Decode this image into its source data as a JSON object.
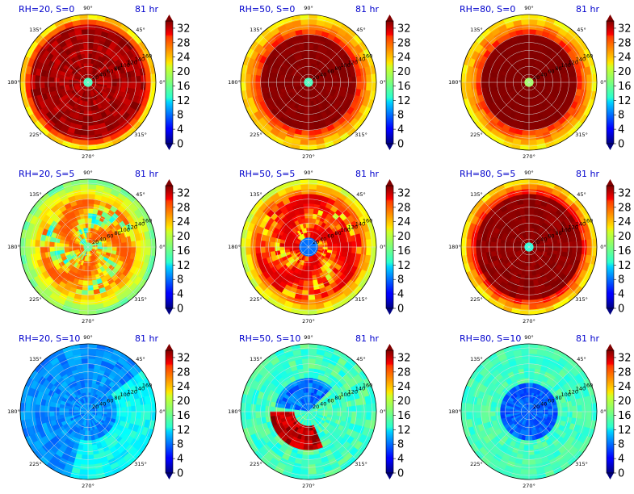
{
  "figure": {
    "angle_labels": [
      "0°",
      "45°",
      "90°",
      "135°",
      "180°",
      "225°",
      "270°",
      "315°"
    ],
    "radial_labels": [
      "20",
      "40",
      "60",
      "80",
      "100",
      "120",
      "140",
      "160"
    ],
    "colorbar_ticks": [
      "0",
      "4",
      "8",
      "12",
      "16",
      "20",
      "24",
      "28",
      "32"
    ]
  },
  "chart_data": [
    {
      "type": "heatmap",
      "projection": "polar",
      "title": "RH=20, S=0",
      "time_label": "81 hr",
      "rlim": [
        0,
        170
      ],
      "clim": [
        0,
        34
      ],
      "pattern": "ring",
      "core": [
        15,
        0.1
      ],
      "ring_value": 34,
      "ring_outer": 0.88,
      "outer_value": 20,
      "noise": 7,
      "grid": true
    },
    {
      "type": "heatmap",
      "projection": "polar",
      "title": "RH=50, S=0",
      "time_label": "81 hr",
      "rlim": [
        0,
        170
      ],
      "clim": [
        0,
        34
      ],
      "pattern": "ring",
      "core": [
        15,
        0.08
      ],
      "ring_value": 34,
      "ring_outer": 0.72,
      "outer_value": 21,
      "noise": 2,
      "grid": true
    },
    {
      "type": "heatmap",
      "projection": "polar",
      "title": "RH=80, S=0",
      "time_label": "81 hr",
      "rlim": [
        0,
        170
      ],
      "clim": [
        0,
        34
      ],
      "pattern": "ring",
      "core": [
        18,
        0.05
      ],
      "ring_value": 34,
      "ring_outer": 0.72,
      "outer_value": 21,
      "noise": 1,
      "grid": true
    },
    {
      "type": "heatmap",
      "projection": "polar",
      "title": "RH=20, S=5",
      "time_label": "81 hr",
      "rlim": [
        0,
        170
      ],
      "clim": [
        0,
        34
      ],
      "pattern": "spiral",
      "core": [
        16,
        0.06
      ],
      "ring_value": 27,
      "ring_outer": 0.75,
      "outer_value": 16,
      "noise": 8,
      "grid": true
    },
    {
      "type": "heatmap",
      "projection": "polar",
      "title": "RH=50, S=5",
      "time_label": "81 hr",
      "rlim": [
        0,
        170
      ],
      "clim": [
        0,
        34
      ],
      "pattern": "spiral",
      "core": [
        8,
        0.13
      ],
      "ring_value": 31,
      "ring_outer": 0.8,
      "outer_value": 19,
      "noise": 6,
      "grid": true
    },
    {
      "type": "heatmap",
      "projection": "polar",
      "title": "RH=80, S=5",
      "time_label": "81 hr",
      "rlim": [
        0,
        170
      ],
      "clim": [
        0,
        34
      ],
      "pattern": "ring",
      "core": [
        14,
        0.06
      ],
      "ring_value": 34,
      "ring_outer": 0.82,
      "outer_value": 21,
      "noise": 3,
      "grid": true
    },
    {
      "type": "heatmap",
      "projection": "polar",
      "title": "RH=20, S=10",
      "time_label": "81 hr",
      "rlim": [
        0,
        170
      ],
      "clim": [
        0,
        34
      ],
      "pattern": "flat",
      "core": [
        10,
        0
      ],
      "ring_value": 9,
      "ring_outer": 0.6,
      "outer_value": 10,
      "noise": 3,
      "grid": true
    },
    {
      "type": "heatmap",
      "projection": "polar",
      "title": "RH=50, S=10",
      "time_label": "81 hr",
      "rlim": [
        0,
        170
      ],
      "clim": [
        0,
        34
      ],
      "pattern": "arc",
      "core": [
        13,
        0
      ],
      "ring_value": 14,
      "ring_outer": 0.6,
      "outer_value": 15,
      "noise": 4,
      "grid": true
    },
    {
      "type": "heatmap",
      "projection": "polar",
      "title": "RH=80, S=10",
      "time_label": "81 hr",
      "rlim": [
        0,
        170
      ],
      "clim": [
        0,
        34
      ],
      "pattern": "dry-core",
      "core": [
        6,
        0.45
      ],
      "ring_value": 10,
      "ring_outer": 0.6,
      "outer_value": 15,
      "noise": 3,
      "grid": true
    }
  ]
}
